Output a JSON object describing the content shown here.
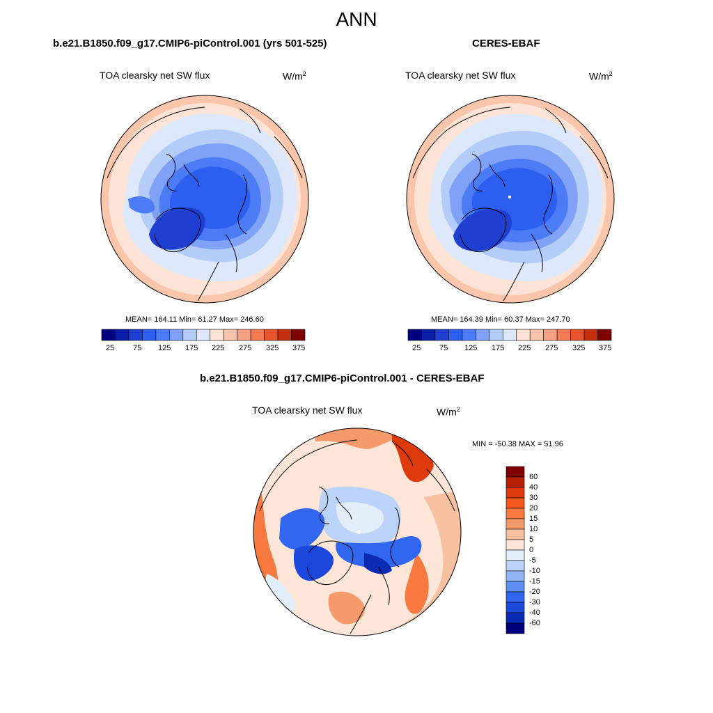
{
  "figure": {
    "title": "ANN"
  },
  "panels": [
    {
      "id": "model",
      "title": "b.e21.B1850.f09_g17.CMIP6-piControl.001 (yrs 501-525)",
      "variable": "TOA clearsky net SW flux",
      "units_base": "W/m",
      "units_exp": "2",
      "stats": "MEAN= 164.11  Min=  61.27  Max= 246.60",
      "colorbar_ticks": [
        "25",
        "75",
        "125",
        "175",
        "225",
        "275",
        "325",
        "375"
      ]
    },
    {
      "id": "obs",
      "title": "CERES-EBAF",
      "variable": "TOA clearsky net SW flux",
      "units_base": "W/m",
      "units_exp": "2",
      "stats": "MEAN= 164.39  Min=  60.37  Max= 247.70",
      "colorbar_ticks": [
        "25",
        "75",
        "125",
        "175",
        "225",
        "275",
        "325",
        "375"
      ]
    },
    {
      "id": "diff",
      "title": "b.e21.B1850.f09_g17.CMIP6-piControl.001 - CERES-EBAF",
      "variable": "TOA clearsky net SW flux",
      "units_base": "W/m",
      "units_exp": "2",
      "stats": "MIN = -50.38 MAX =  51.96",
      "colorbar_ticks": [
        "60",
        "40",
        "30",
        "20",
        "15",
        "10",
        "5",
        "0",
        "-5",
        "-10",
        "-15",
        "-20",
        "-30",
        "-40",
        "-60"
      ]
    }
  ],
  "colors": {
    "abs_scale": [
      "#00007f",
      "#0a1fa6",
      "#1e3fd0",
      "#2c5ef0",
      "#4c7cf5",
      "#7fa2f7",
      "#b4cdf8",
      "#dde9fb",
      "#fde3d5",
      "#f7c3a8",
      "#f4a283",
      "#f47c55",
      "#e6552e",
      "#c2300f",
      "#7f0000"
    ],
    "diff_scale": [
      "#7f0000",
      "#b41f00",
      "#dd3a0e",
      "#f5561e",
      "#f77940",
      "#f59a6a",
      "#f7c1a1",
      "#fde5d7",
      "#e3eefb",
      "#bcd3f8",
      "#91b4f6",
      "#5f8ff4",
      "#3166ef",
      "#1c47db",
      "#0b2bb5",
      "#00007f"
    ],
    "ocean_outer": "#f9c6ac",
    "land_line": "#000000"
  }
}
